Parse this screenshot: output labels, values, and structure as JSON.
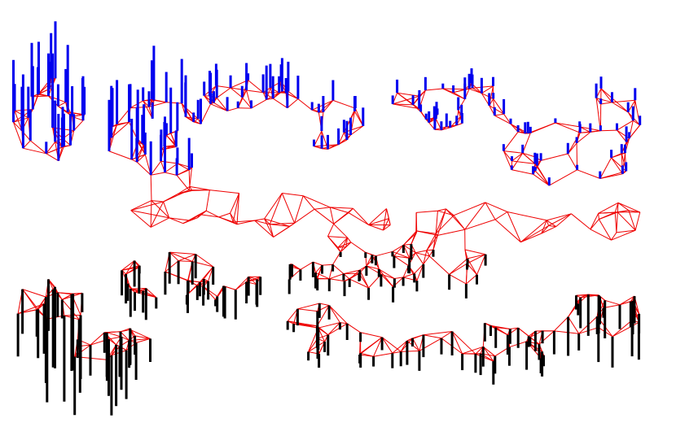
{
  "figure": {
    "kind": "3d-network-graph",
    "edge_color": "#ee0000",
    "upper_spike_color": "#0000ee",
    "lower_spike_color": "#000000",
    "background": "#ffffff"
  }
}
